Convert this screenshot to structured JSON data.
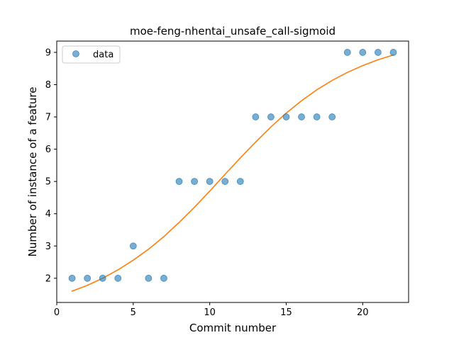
{
  "chart_data": {
    "type": "scatter",
    "title": "moe-feng-nhentai_unsafe_call-sigmoid",
    "xlabel": "Commit number",
    "ylabel": "Number of instance of a feature",
    "xlim": [
      0,
      23
    ],
    "ylim": [
      1.25,
      9.35
    ],
    "xticks": [
      0,
      5,
      10,
      15,
      20
    ],
    "yticks": [
      2,
      3,
      4,
      5,
      6,
      7,
      8,
      9
    ],
    "legend": {
      "placement": "upper-left",
      "entries": [
        "data"
      ]
    },
    "series": [
      {
        "name": "data",
        "kind": "scatter",
        "color": "#1f77b4",
        "x": [
          1,
          2,
          3,
          4,
          5,
          6,
          7,
          8,
          9,
          10,
          11,
          12,
          13,
          14,
          15,
          16,
          17,
          18,
          19,
          20,
          21,
          22
        ],
        "y": [
          2,
          2,
          2,
          2,
          3,
          2,
          2,
          5,
          5,
          5,
          5,
          5,
          7,
          7,
          7,
          7,
          7,
          7,
          9,
          9,
          9,
          9
        ]
      },
      {
        "kind": "line",
        "color": "#ff7f0e",
        "x": [
          1,
          2,
          3,
          4,
          5,
          6,
          7,
          8,
          9,
          10,
          11,
          12,
          13,
          14,
          15,
          16,
          17,
          18,
          19,
          20,
          21,
          22
        ],
        "y": [
          1.6,
          1.78,
          2.0,
          2.26,
          2.56,
          2.9,
          3.29,
          3.73,
          4.2,
          4.7,
          5.22,
          5.73,
          6.22,
          6.69,
          7.12,
          7.5,
          7.84,
          8.13,
          8.38,
          8.59,
          8.77,
          8.92
        ]
      }
    ]
  }
}
